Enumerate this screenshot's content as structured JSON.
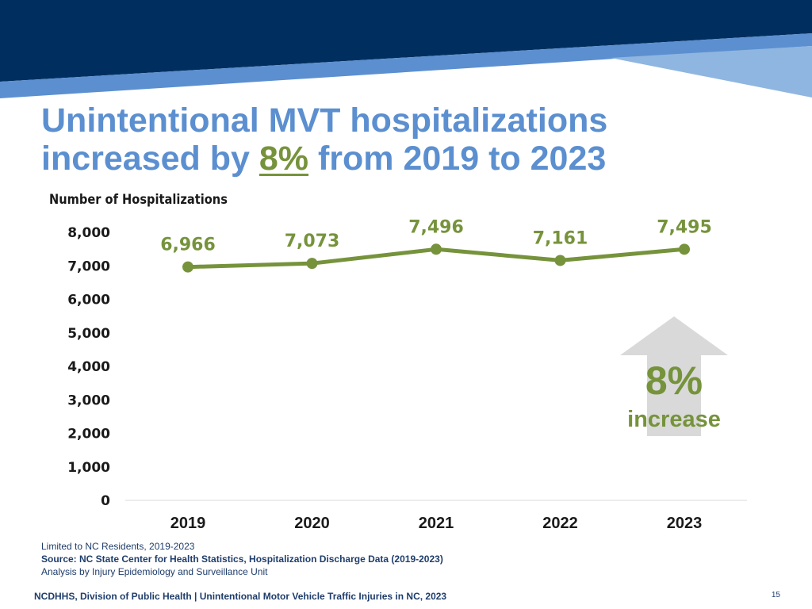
{
  "title": {
    "line1": "Unintentional MVT hospitalizations",
    "line2_prefix": "increased by ",
    "line2_highlight": "8%",
    "line2_suffix": " from 2019 to 2023"
  },
  "chart_data": {
    "type": "line",
    "title": "Unintentional MVT hospitalizations increased by 8% from 2019 to 2023",
    "ylabel": "Number of Hospitalizations",
    "xlabel": "",
    "categories": [
      "2019",
      "2020",
      "2021",
      "2022",
      "2023"
    ],
    "series": [
      {
        "name": "Hospitalizations",
        "values": [
          6966,
          7073,
          7496,
          7161,
          7495
        ],
        "labels": [
          "6,966",
          "7,073",
          "7,496",
          "7,161",
          "7,495"
        ]
      }
    ],
    "ylim": [
      0,
      8000
    ],
    "yticks": [
      "0",
      "1,000",
      "2,000",
      "3,000",
      "4,000",
      "5,000",
      "6,000",
      "7,000",
      "8,000"
    ],
    "grid": false,
    "legend": "none"
  },
  "callout": {
    "value": "8%",
    "label": "increase"
  },
  "notes": {
    "line1": "Limited to NC Residents, 2019-2023",
    "source": "Source: NC State Center for Health Statistics, Hospitalization Discharge Data (2019-2023)",
    "line3": "Analysis by Injury Epidemiology and Surveillance Unit"
  },
  "footer": "NCDHHS, Division of Public Health | Unintentional Motor Vehicle Traffic Injuries in NC, 2023",
  "page_number": "15",
  "colors": {
    "navy": "#002f5f",
    "blue": "#5b8fd0",
    "lightblue": "#8fb6e0",
    "green": "#76933c",
    "arrow": "#d9d9d9"
  }
}
